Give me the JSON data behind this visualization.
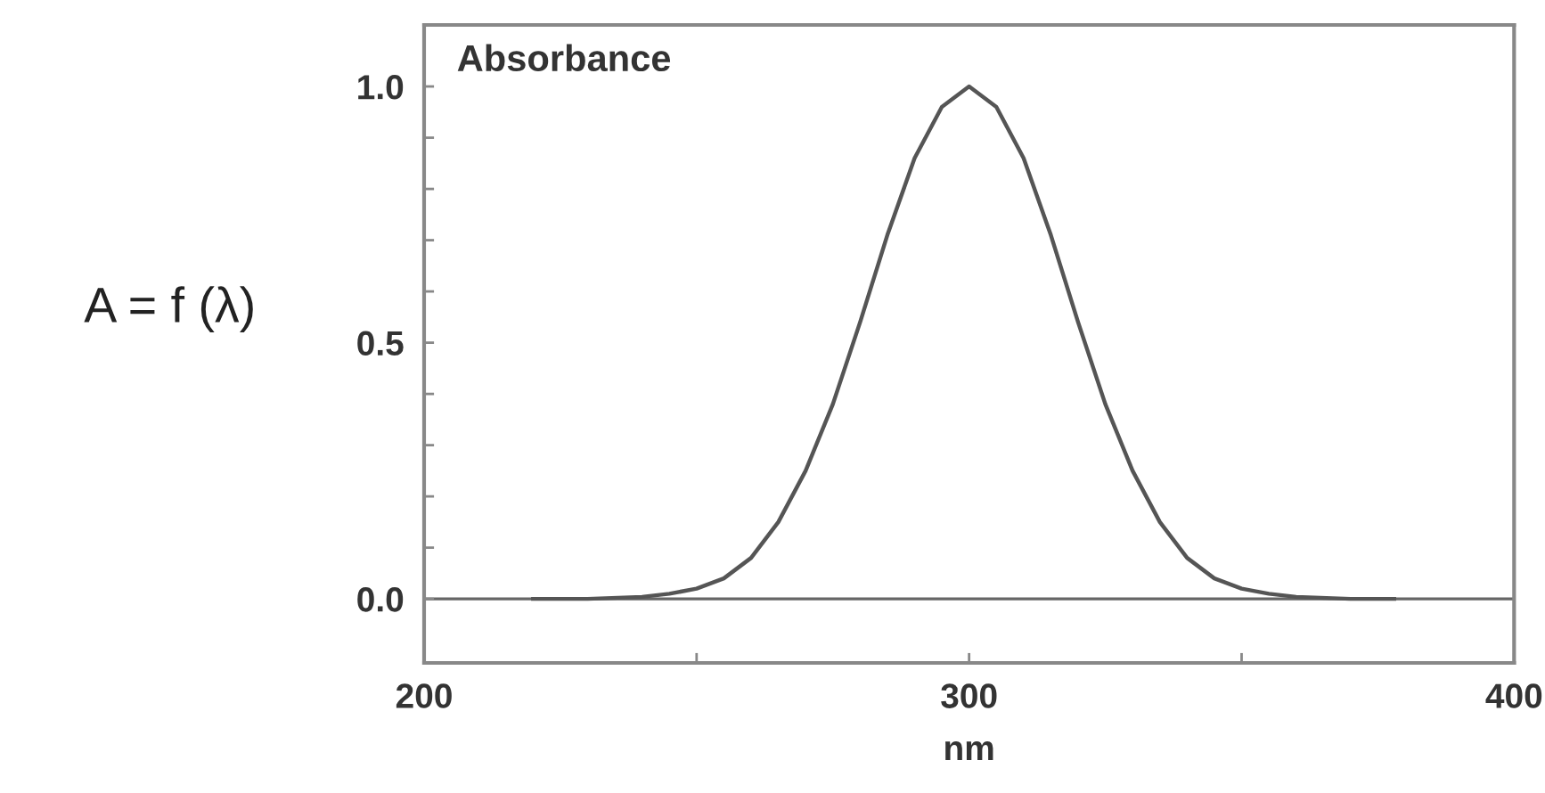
{
  "chart_data": {
    "type": "line",
    "xlabel": "nm",
    "annotations": [
      "Absorbance",
      "A = f (λ)"
    ],
    "x": [
      220,
      230,
      240,
      245,
      250,
      255,
      260,
      265,
      270,
      275,
      280,
      285,
      290,
      295,
      300,
      305,
      310,
      315,
      320,
      325,
      330,
      335,
      340,
      345,
      350,
      355,
      360,
      370,
      378
    ],
    "series": [
      {
        "color": "#555555",
        "values": [
          0.0,
          0.0,
          0.004,
          0.01,
          0.02,
          0.04,
          0.08,
          0.15,
          0.25,
          0.38,
          0.54,
          0.71,
          0.86,
          0.96,
          1.0,
          0.96,
          0.86,
          0.71,
          0.54,
          0.38,
          0.25,
          0.15,
          0.08,
          0.04,
          0.02,
          0.01,
          0.004,
          0.0,
          0.0
        ]
      }
    ],
    "xlim": [
      200,
      400
    ],
    "ylim": [
      -0.125,
      1.12
    ],
    "xticks": [
      200,
      {
        "value": 250,
        "label": null
      },
      300,
      {
        "value": 350,
        "label": null
      },
      400
    ],
    "yticks": [
      {
        "value": 0,
        "label": "0.0"
      },
      {
        "value": 0.1,
        "label": null
      },
      {
        "value": 0.2,
        "label": null
      },
      {
        "value": 0.3,
        "label": null
      },
      {
        "value": 0.4,
        "label": null
      },
      {
        "value": 0.5,
        "label": "0.5"
      },
      {
        "value": 0.6,
        "label": null
      },
      {
        "value": 0.7,
        "label": null
      },
      {
        "value": 0.8,
        "label": null
      },
      {
        "value": 0.9,
        "label": null
      },
      {
        "value": 1.0,
        "label": "1.0"
      }
    ],
    "ref_lines": [
      {
        "axis": "y",
        "value": 0,
        "color": "#666666"
      }
    ],
    "grid": false,
    "legend": false,
    "marker": "none",
    "line_style": "solid"
  }
}
